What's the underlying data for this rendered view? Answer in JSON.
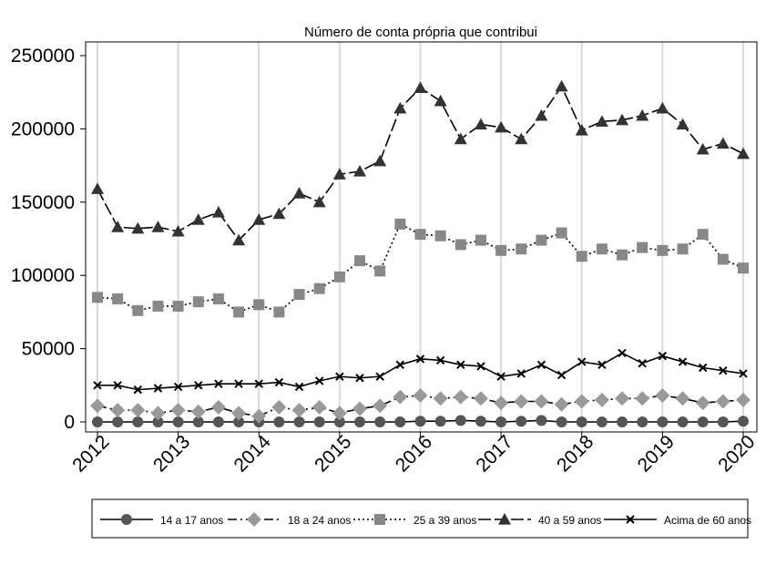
{
  "chart_data": {
    "type": "line",
    "title": "Número de conta própria que contribui",
    "xlabel": "",
    "ylabel": "",
    "xlim": [
      2012,
      2020
    ],
    "ylim": [
      0,
      250000
    ],
    "x_ticks": [
      "2012",
      "2013",
      "2014",
      "2015",
      "2016",
      "2017",
      "2018",
      "2019",
      "2020"
    ],
    "y_ticks": [
      "0",
      "50000",
      "100000",
      "150000",
      "200000",
      "250000"
    ],
    "grid": "vertical",
    "legend_position": "bottom",
    "x": [
      2012.0,
      2012.25,
      2012.5,
      2012.75,
      2013.0,
      2013.25,
      2013.5,
      2013.75,
      2014.0,
      2014.25,
      2014.5,
      2014.75,
      2015.0,
      2015.25,
      2015.5,
      2015.75,
      2016.0,
      2016.25,
      2016.5,
      2016.75,
      2017.0,
      2017.25,
      2017.5,
      2017.75,
      2018.0,
      2018.25,
      2018.5,
      2018.75,
      2019.0,
      2019.25,
      2019.5,
      2019.75,
      2020.0
    ],
    "series": [
      {
        "name": "14 a 17 anos",
        "color": "#555555",
        "marker": "circle",
        "dash": "",
        "values": [
          0,
          0,
          0,
          0,
          0,
          0,
          0,
          0,
          0,
          0,
          0,
          0,
          0,
          0,
          0,
          0,
          500,
          500,
          1000,
          500,
          0,
          500,
          1000,
          0,
          0,
          0,
          0,
          0,
          0,
          0,
          0,
          0,
          500
        ]
      },
      {
        "name": "18 a 24 anos",
        "color": "#999999",
        "marker": "diamond",
        "dash": "10,4,2,4",
        "values": [
          11000,
          8000,
          8000,
          6000,
          8000,
          7000,
          10000,
          6000,
          4000,
          10000,
          8000,
          10000,
          6000,
          9000,
          11000,
          17000,
          18000,
          16000,
          17000,
          16000,
          13000,
          14000,
          14000,
          12000,
          14000,
          15000,
          16000,
          16000,
          18000,
          16000,
          13000,
          14000,
          15000
        ]
      },
      {
        "name": "25 a 39 anos",
        "color": "#888888",
        "marker": "square",
        "dash": "2,3",
        "values": [
          85000,
          84000,
          76000,
          79000,
          79000,
          82000,
          84000,
          75000,
          80000,
          75000,
          87000,
          91000,
          99000,
          110000,
          103000,
          135000,
          128000,
          127000,
          121000,
          124000,
          117000,
          118000,
          124000,
          129000,
          113000,
          118000,
          114000,
          119000,
          117000,
          118000,
          128000,
          111000,
          105000
        ]
      },
      {
        "name": "40 a 59 anos",
        "color": "#333333",
        "marker": "triangle",
        "dash": "14,4",
        "values": [
          159000,
          133000,
          132000,
          133000,
          130000,
          138000,
          143000,
          124000,
          138000,
          142000,
          156000,
          150000,
          169000,
          171000,
          178000,
          214000,
          228000,
          219000,
          193000,
          203000,
          201000,
          193000,
          209000,
          229000,
          199000,
          205000,
          206000,
          209000,
          214000,
          203000,
          186000,
          190000,
          183000
        ]
      },
      {
        "name": "Acima de 60 anos",
        "color": "#000000",
        "marker": "x",
        "dash": "",
        "values": [
          25000,
          25000,
          22000,
          23000,
          24000,
          25000,
          26000,
          26000,
          26000,
          27000,
          24000,
          28000,
          31000,
          30000,
          31000,
          39000,
          43000,
          42000,
          39000,
          38000,
          31000,
          33000,
          39000,
          32000,
          41000,
          39000,
          47000,
          40000,
          45000,
          41000,
          37000,
          35000,
          33000
        ]
      }
    ]
  }
}
